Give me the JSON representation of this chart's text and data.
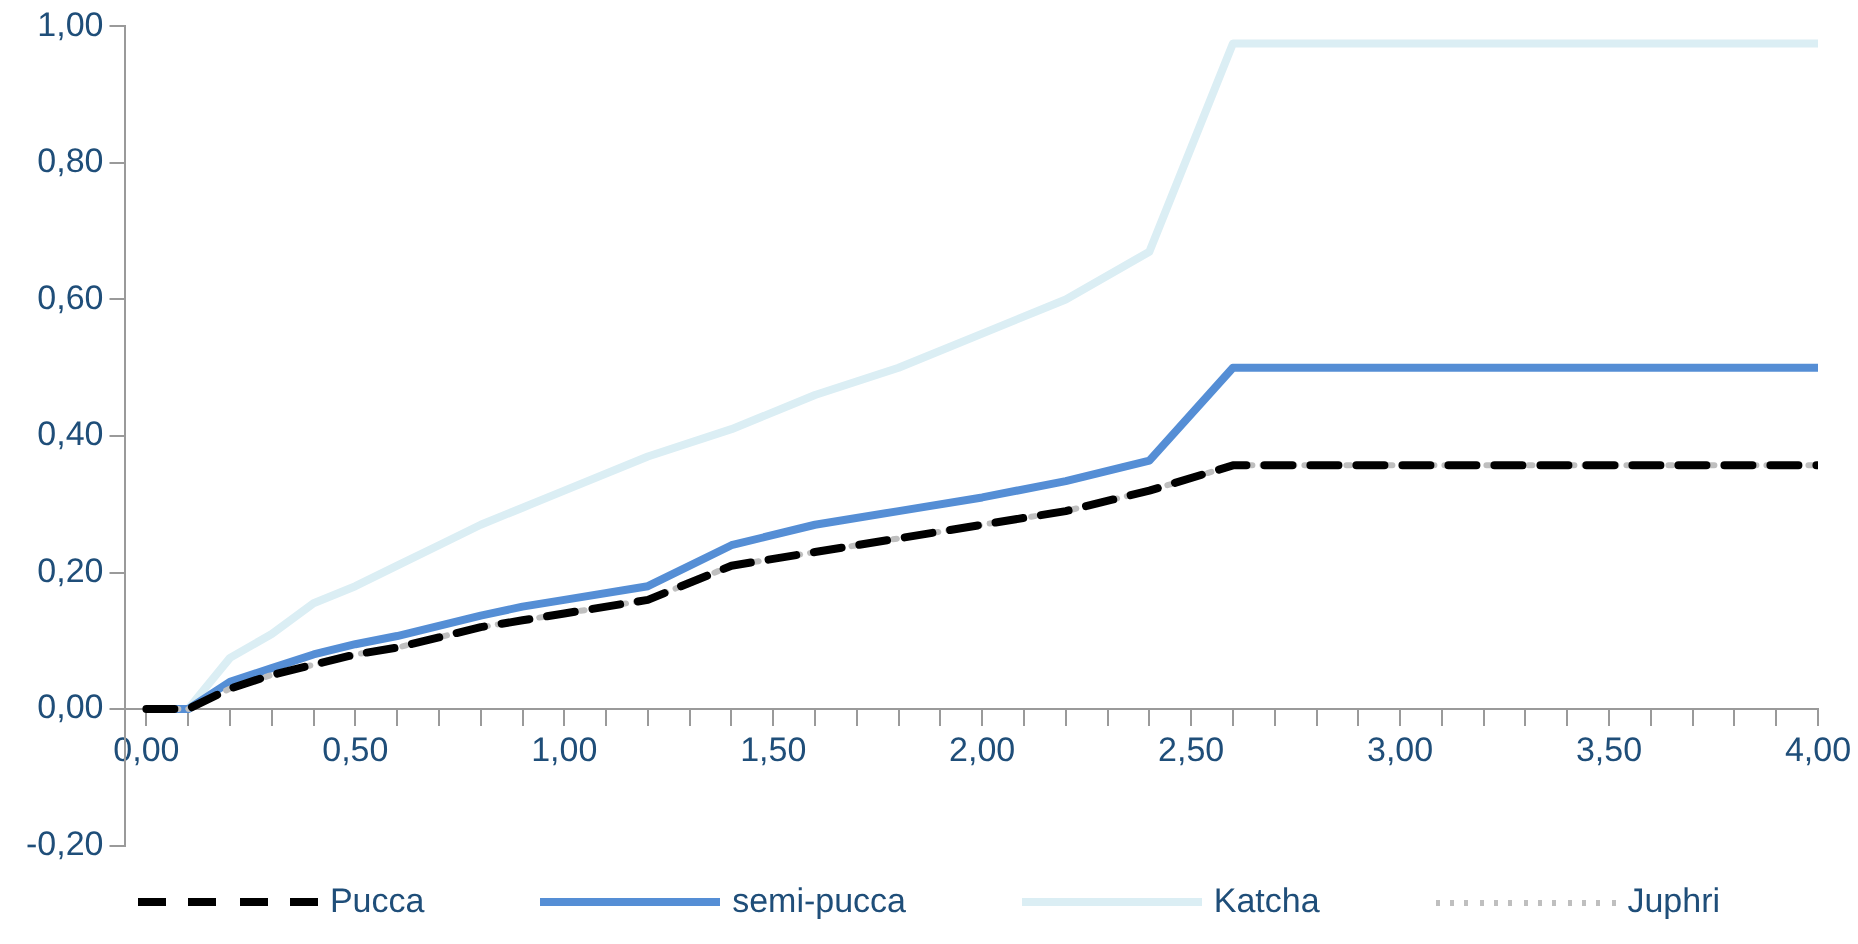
{
  "chart_data": {
    "type": "line",
    "legend": "bottom",
    "grid": false,
    "marker": "none",
    "xlim": [
      -0.05,
      4.0
    ],
    "xticks": [
      {
        "value": 0,
        "label": "0,00"
      },
      {
        "value": 0.1,
        "label": null
      },
      {
        "value": 0.2,
        "label": null
      },
      {
        "value": 0.3,
        "label": null
      },
      {
        "value": 0.4,
        "label": null
      },
      {
        "value": 0.5,
        "label": "0,50"
      },
      {
        "value": 0.6,
        "label": null
      },
      {
        "value": 0.7,
        "label": null
      },
      {
        "value": 0.8,
        "label": null
      },
      {
        "value": 0.9,
        "label": null
      },
      {
        "value": 1,
        "label": "1,00"
      },
      {
        "value": 1.1,
        "label": null
      },
      {
        "value": 1.2,
        "label": null
      },
      {
        "value": 1.3,
        "label": null
      },
      {
        "value": 1.4,
        "label": null
      },
      {
        "value": 1.5,
        "label": "1,50"
      },
      {
        "value": 1.6,
        "label": null
      },
      {
        "value": 1.7,
        "label": null
      },
      {
        "value": 1.8,
        "label": null
      },
      {
        "value": 1.9,
        "label": null
      },
      {
        "value": 2,
        "label": "2,00"
      },
      {
        "value": 2.1,
        "label": null
      },
      {
        "value": 2.2,
        "label": null
      },
      {
        "value": 2.3,
        "label": null
      },
      {
        "value": 2.4,
        "label": null
      },
      {
        "value": 2.5,
        "label": "2,50"
      },
      {
        "value": 2.6,
        "label": null
      },
      {
        "value": 2.7,
        "label": null
      },
      {
        "value": 2.8,
        "label": null
      },
      {
        "value": 2.9,
        "label": null
      },
      {
        "value": 3,
        "label": "3,00"
      },
      {
        "value": 3.1,
        "label": null
      },
      {
        "value": 3.2,
        "label": null
      },
      {
        "value": 3.3,
        "label": null
      },
      {
        "value": 3.4,
        "label": null
      },
      {
        "value": 3.5,
        "label": "3,50"
      },
      {
        "value": 3.6,
        "label": null
      },
      {
        "value": 3.7,
        "label": null
      },
      {
        "value": 3.8,
        "label": null
      },
      {
        "value": 3.9,
        "label": null
      },
      {
        "value": 4,
        "label": "4,00"
      }
    ],
    "ylim": [
      -0.2,
      1.0
    ],
    "yticks": [
      {
        "value": -0.2,
        "label": "-0,20"
      },
      {
        "value": 0,
        "label": "0,00"
      },
      {
        "value": 0.2,
        "label": "0,20"
      },
      {
        "value": 0.4,
        "label": "0,40"
      },
      {
        "value": 0.6,
        "label": "0,60"
      },
      {
        "value": 0.8,
        "label": "0,80"
      },
      {
        "value": 1,
        "label": "1,00"
      }
    ],
    "x": [
      0,
      0.1,
      0.2,
      0.3,
      0.4,
      0.5,
      0.6,
      0.7,
      0.8,
      0.9,
      1.0,
      1.2,
      1.4,
      1.6,
      1.8,
      2.0,
      2.2,
      2.4,
      2.6,
      4.0
    ],
    "series": [
      {
        "name": "Pucca",
        "color": "#000000",
        "line_style": "dashed",
        "values": [
          0,
          0,
          0.03,
          0.05,
          0.065,
          0.08,
          0.09,
          0.105,
          0.12,
          0.13,
          0.14,
          0.16,
          0.21,
          0.23,
          0.25,
          0.27,
          0.29,
          0.32,
          0.357,
          0.357
        ]
      },
      {
        "name": "semi-pucca",
        "color": "#558ed5",
        "line_style": "solid",
        "values": [
          0,
          0,
          0.04,
          0.06,
          0.08,
          0.095,
          0.107,
          0.122,
          0.137,
          0.15,
          0.16,
          0.18,
          0.24,
          0.27,
          0.29,
          0.31,
          0.334,
          0.364,
          0.5,
          0.5
        ]
      },
      {
        "name": "Katcha",
        "color": "#dbeef4",
        "line_style": "solid",
        "values": [
          0,
          0,
          0.075,
          0.11,
          0.155,
          0.18,
          0.21,
          0.24,
          0.27,
          0.295,
          0.32,
          0.37,
          0.41,
          0.46,
          0.5,
          0.55,
          0.6,
          0.67,
          0.975,
          0.975
        ]
      },
      {
        "name": "Juphri",
        "color": "#bfbfbf",
        "line_style": "dotted",
        "values": [
          0,
          0,
          0.03,
          0.05,
          0.065,
          0.08,
          0.09,
          0.105,
          0.12,
          0.13,
          0.14,
          0.16,
          0.21,
          0.23,
          0.25,
          0.27,
          0.29,
          0.32,
          0.357,
          0.357
        ]
      }
    ]
  }
}
